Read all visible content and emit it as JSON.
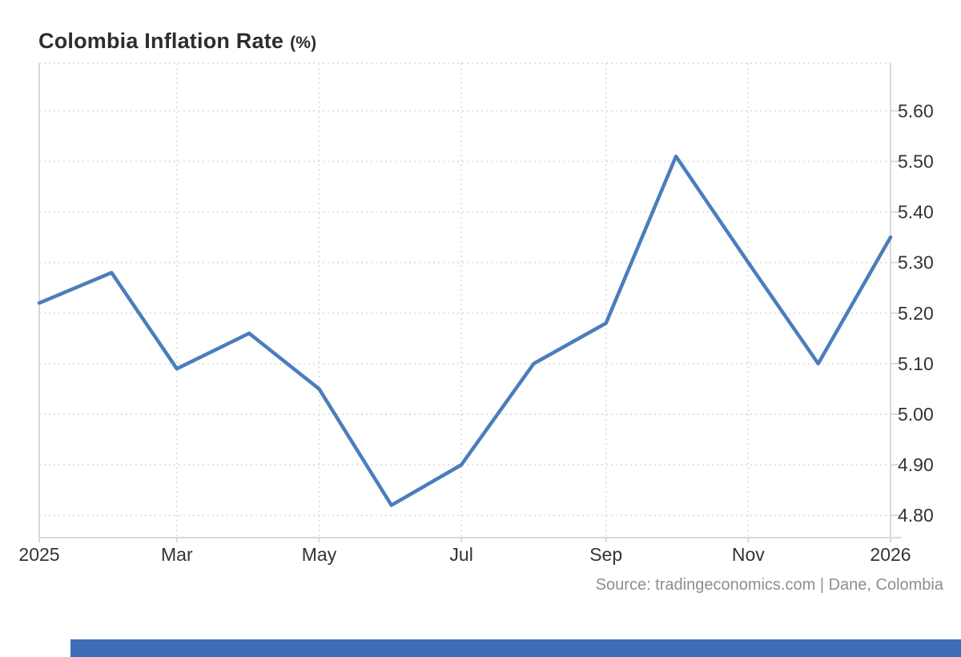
{
  "title": {
    "main": "Colombia Inflation Rate",
    "unit": "(%)"
  },
  "source": "Source: tradingeconomics.com | Dane, Colombia",
  "colors": {
    "line": "#4a7ebb",
    "grid": "#e0e0e0",
    "border": "#d9d9d9",
    "axis_text": "#333333",
    "title_text": "#2d2d2d",
    "source_text": "#8e8e8e",
    "scrollbar": "#3d6eb5",
    "background": "#ffffff"
  },
  "chart_data": {
    "type": "line",
    "title": "Colombia Inflation Rate (%)",
    "ylabel": "Inflation Rate (%)",
    "xlabel": "",
    "legend": "none",
    "grid": "dotted",
    "categories": [
      "Jan 2025",
      "Feb 2025",
      "Mar 2025",
      "Apr 2025",
      "May 2025",
      "Jun 2025",
      "Jul 2025",
      "Aug 2025",
      "Sep 2025",
      "Oct 2025",
      "Nov 2025",
      "Dec 2025",
      "Jan 2026"
    ],
    "values": [
      5.22,
      5.28,
      5.09,
      5.16,
      5.05,
      4.82,
      4.9,
      5.1,
      5.18,
      5.51,
      5.3,
      5.1,
      5.35
    ],
    "x_day_offsets": [
      0,
      31,
      59,
      90,
      120,
      151,
      181,
      212,
      243,
      273,
      304,
      334,
      365
    ],
    "xlim_days": [
      0,
      365
    ],
    "ylim": [
      4.756,
      5.694
    ],
    "y_ticks": [
      4.8,
      4.9,
      5.0,
      5.1,
      5.2,
      5.3,
      5.4,
      5.5,
      5.6
    ],
    "x_gridline_days": [
      59,
      120,
      181,
      243,
      304
    ],
    "x_tick_labels": [
      {
        "label": "2025",
        "day": 0
      },
      {
        "label": "Mar",
        "day": 59
      },
      {
        "label": "May",
        "day": 120
      },
      {
        "label": "Jul",
        "day": 181
      },
      {
        "label": "Sep",
        "day": 243
      },
      {
        "label": "Nov",
        "day": 304
      },
      {
        "label": "2026",
        "day": 365
      }
    ]
  }
}
